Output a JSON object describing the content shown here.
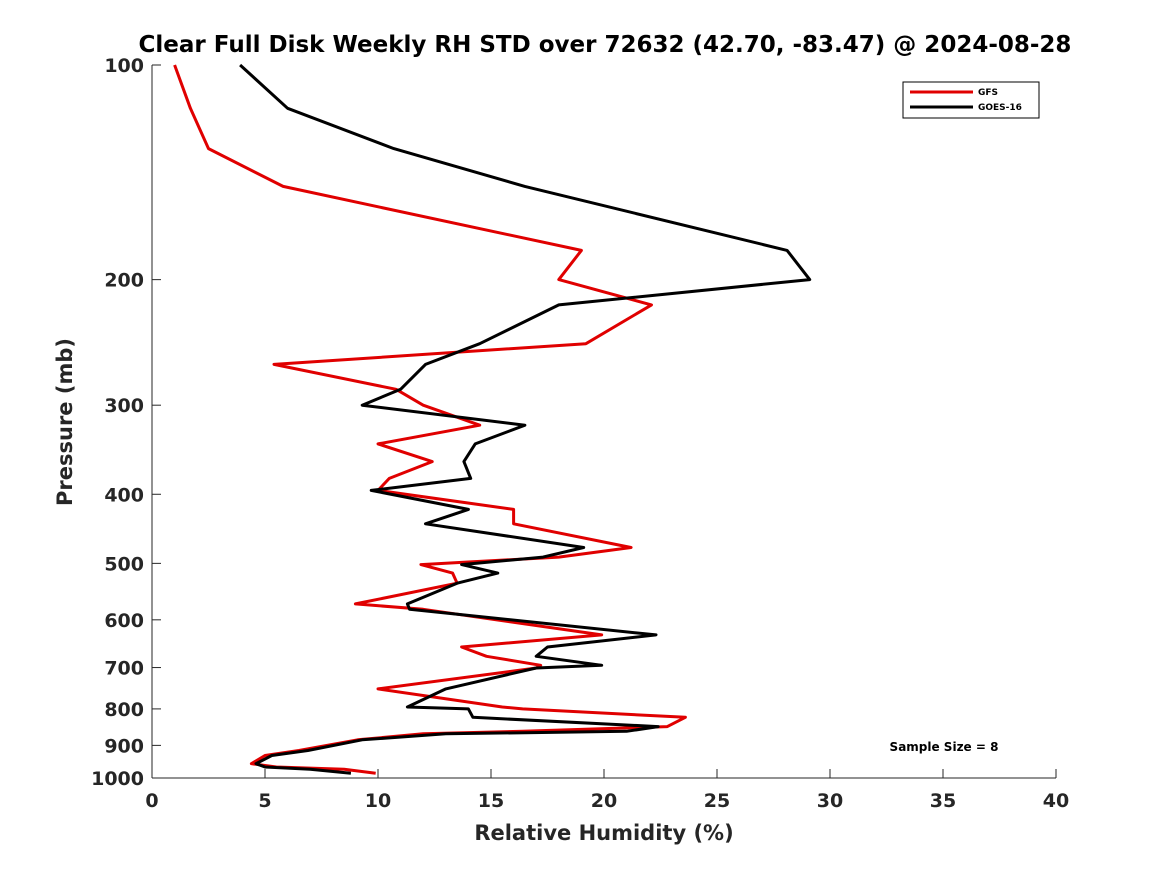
{
  "chart_data": {
    "type": "line",
    "title": "Clear Full Disk Weekly RH STD over 72632 (42.70, -83.47) @ 2024-08-28",
    "xlabel": "Relative Humidity (%)",
    "ylabel": "Pressure (mb)",
    "xlim": [
      0,
      40
    ],
    "ylim": [
      100,
      1000
    ],
    "y_scale": "log",
    "y_reversed": true,
    "x_ticks": [
      "0",
      "5",
      "10",
      "15",
      "20",
      "25",
      "30",
      "35",
      "40"
    ],
    "y_ticks": [
      "100",
      "200",
      "300",
      "400",
      "500",
      "600",
      "700",
      "800",
      "900",
      "1000"
    ],
    "grid": false,
    "legend_position": "top-right",
    "annotation": "Sample Size = 8",
    "series": [
      {
        "name": "GFS",
        "color": "#e00000",
        "points": [
          [
            1.0,
            100
          ],
          [
            1.7,
            115
          ],
          [
            2.5,
            131
          ],
          [
            5.8,
            148
          ],
          [
            19.0,
            182
          ],
          [
            18.0,
            200
          ],
          [
            22.1,
            217
          ],
          [
            19.2,
            246
          ],
          [
            5.4,
            263
          ],
          [
            10.8,
            285
          ],
          [
            12.0,
            300
          ],
          [
            14.5,
            320
          ],
          [
            10.0,
            340
          ],
          [
            12.4,
            360
          ],
          [
            10.5,
            380
          ],
          [
            10.0,
            395
          ],
          [
            16.0,
            420
          ],
          [
            16.0,
            440
          ],
          [
            21.2,
            475
          ],
          [
            18.0,
            490
          ],
          [
            11.9,
            502
          ],
          [
            13.3,
            516
          ],
          [
            13.5,
            533
          ],
          [
            9.0,
            570
          ],
          [
            12.0,
            580
          ],
          [
            19.9,
            630
          ],
          [
            13.7,
            655
          ],
          [
            14.8,
            675
          ],
          [
            17.2,
            695
          ],
          [
            17.0,
            701
          ],
          [
            10.0,
            750
          ],
          [
            15.5,
            795
          ],
          [
            16.4,
            800
          ],
          [
            23.6,
            822
          ],
          [
            22.8,
            847
          ],
          [
            16.4,
            860
          ],
          [
            12.0,
            867
          ],
          [
            9.1,
            884
          ],
          [
            6.5,
            915
          ],
          [
            5.0,
            930
          ],
          [
            4.4,
            955
          ],
          [
            5.5,
            965
          ],
          [
            8.5,
            972
          ],
          [
            9.9,
            985
          ]
        ]
      },
      {
        "name": "GOES-16",
        "color": "#000000",
        "points": [
          [
            3.9,
            100
          ],
          [
            6.0,
            115
          ],
          [
            10.7,
            131
          ],
          [
            16.5,
            148
          ],
          [
            28.1,
            182
          ],
          [
            29.1,
            200
          ],
          [
            18.0,
            217
          ],
          [
            14.5,
            246
          ],
          [
            12.1,
            263
          ],
          [
            11.0,
            285
          ],
          [
            9.3,
            300
          ],
          [
            16.5,
            320
          ],
          [
            14.3,
            340
          ],
          [
            13.8,
            360
          ],
          [
            14.1,
            380
          ],
          [
            9.7,
            395
          ],
          [
            14.0,
            420
          ],
          [
            12.1,
            440
          ],
          [
            19.1,
            475
          ],
          [
            17.3,
            490
          ],
          [
            13.7,
            502
          ],
          [
            15.3,
            516
          ],
          [
            13.5,
            533
          ],
          [
            11.3,
            570
          ],
          [
            11.4,
            580
          ],
          [
            22.3,
            630
          ],
          [
            17.5,
            655
          ],
          [
            17.0,
            675
          ],
          [
            19.9,
            695
          ],
          [
            17.0,
            701
          ],
          [
            13.0,
            750
          ],
          [
            11.3,
            795
          ],
          [
            14.0,
            800
          ],
          [
            14.2,
            822
          ],
          [
            22.4,
            847
          ],
          [
            21.0,
            860
          ],
          [
            13.0,
            867
          ],
          [
            9.3,
            884
          ],
          [
            6.9,
            915
          ],
          [
            5.3,
            930
          ],
          [
            4.6,
            955
          ],
          [
            5.0,
            965
          ],
          [
            7.0,
            972
          ],
          [
            8.8,
            985
          ]
        ]
      }
    ]
  }
}
